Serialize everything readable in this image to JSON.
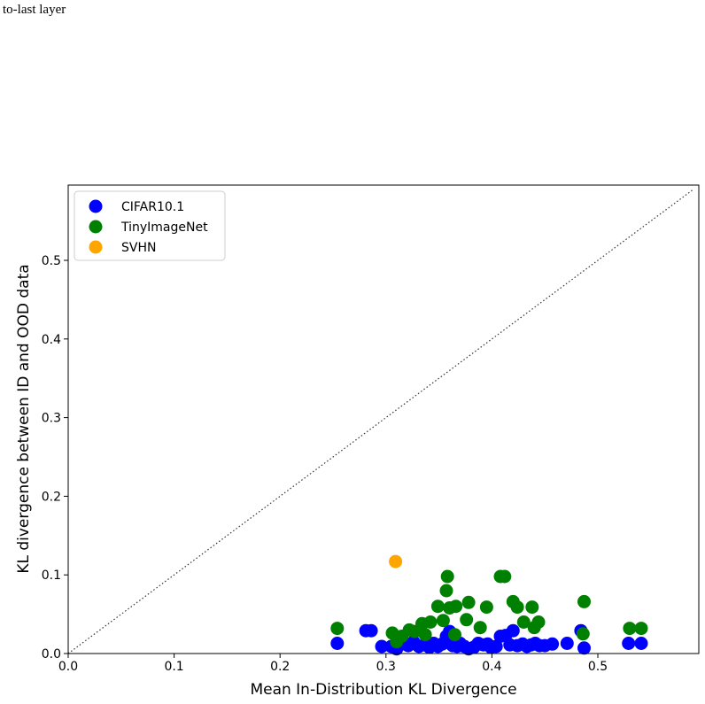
{
  "caption": "to-last layer",
  "chart_data": {
    "type": "scatter",
    "title": "",
    "xlabel": "Mean In-Distribution KL Divergence",
    "ylabel": "KL divergence between ID and OOD data",
    "xlim": [
      0.0,
      0.59
    ],
    "ylim": [
      0.0,
      0.595
    ],
    "xticks": [
      "0.0",
      "0.1",
      "0.2",
      "0.3",
      "0.4",
      "0.5"
    ],
    "yticks": [
      "0.0",
      "0.1",
      "0.2",
      "0.3",
      "0.4",
      "0.5"
    ],
    "grid": false,
    "legend_position": "top-left",
    "reference_line": "y = x (dotted)",
    "series": [
      {
        "name": "CIFAR10.1",
        "color": "#0000ff",
        "points": [
          [
            0.254,
            0.013
          ],
          [
            0.281,
            0.029
          ],
          [
            0.286,
            0.029
          ],
          [
            0.296,
            0.009
          ],
          [
            0.305,
            0.009
          ],
          [
            0.31,
            0.006
          ],
          [
            0.315,
            0.012
          ],
          [
            0.321,
            0.01
          ],
          [
            0.326,
            0.015
          ],
          [
            0.331,
            0.009
          ],
          [
            0.336,
            0.011
          ],
          [
            0.341,
            0.008
          ],
          [
            0.345,
            0.013
          ],
          [
            0.349,
            0.009
          ],
          [
            0.353,
            0.012
          ],
          [
            0.357,
            0.022
          ],
          [
            0.36,
            0.028
          ],
          [
            0.363,
            0.01
          ],
          [
            0.367,
            0.009
          ],
          [
            0.37,
            0.013
          ],
          [
            0.374,
            0.009
          ],
          [
            0.378,
            0.006
          ],
          [
            0.383,
            0.008
          ],
          [
            0.387,
            0.013
          ],
          [
            0.392,
            0.011
          ],
          [
            0.396,
            0.012
          ],
          [
            0.399,
            0.008
          ],
          [
            0.404,
            0.009
          ],
          [
            0.408,
            0.022
          ],
          [
            0.413,
            0.023
          ],
          [
            0.417,
            0.011
          ],
          [
            0.42,
            0.029
          ],
          [
            0.424,
            0.01
          ],
          [
            0.429,
            0.012
          ],
          [
            0.433,
            0.009
          ],
          [
            0.437,
            0.011
          ],
          [
            0.441,
            0.013
          ],
          [
            0.445,
            0.01
          ],
          [
            0.45,
            0.01
          ],
          [
            0.457,
            0.012
          ],
          [
            0.471,
            0.013
          ],
          [
            0.484,
            0.029
          ],
          [
            0.487,
            0.007
          ],
          [
            0.529,
            0.013
          ],
          [
            0.541,
            0.013
          ]
        ]
      },
      {
        "name": "TinyImageNet",
        "color": "#008000",
        "points": [
          [
            0.254,
            0.032
          ],
          [
            0.306,
            0.026
          ],
          [
            0.31,
            0.015
          ],
          [
            0.315,
            0.022
          ],
          [
            0.322,
            0.03
          ],
          [
            0.327,
            0.028
          ],
          [
            0.334,
            0.038
          ],
          [
            0.337,
            0.024
          ],
          [
            0.342,
            0.04
          ],
          [
            0.349,
            0.06
          ],
          [
            0.354,
            0.042
          ],
          [
            0.357,
            0.08
          ],
          [
            0.358,
            0.098
          ],
          [
            0.36,
            0.058
          ],
          [
            0.365,
            0.024
          ],
          [
            0.366,
            0.06
          ],
          [
            0.376,
            0.043
          ],
          [
            0.378,
            0.065
          ],
          [
            0.389,
            0.033
          ],
          [
            0.395,
            0.059
          ],
          [
            0.408,
            0.098
          ],
          [
            0.412,
            0.098
          ],
          [
            0.42,
            0.066
          ],
          [
            0.424,
            0.059
          ],
          [
            0.43,
            0.04
          ],
          [
            0.438,
            0.059
          ],
          [
            0.44,
            0.033
          ],
          [
            0.444,
            0.04
          ],
          [
            0.486,
            0.025
          ],
          [
            0.487,
            0.066
          ],
          [
            0.53,
            0.032
          ],
          [
            0.541,
            0.032
          ]
        ]
      },
      {
        "name": "SVHN",
        "color": "#ffa500",
        "points": [
          [
            0.309,
            0.117
          ]
        ]
      }
    ]
  }
}
